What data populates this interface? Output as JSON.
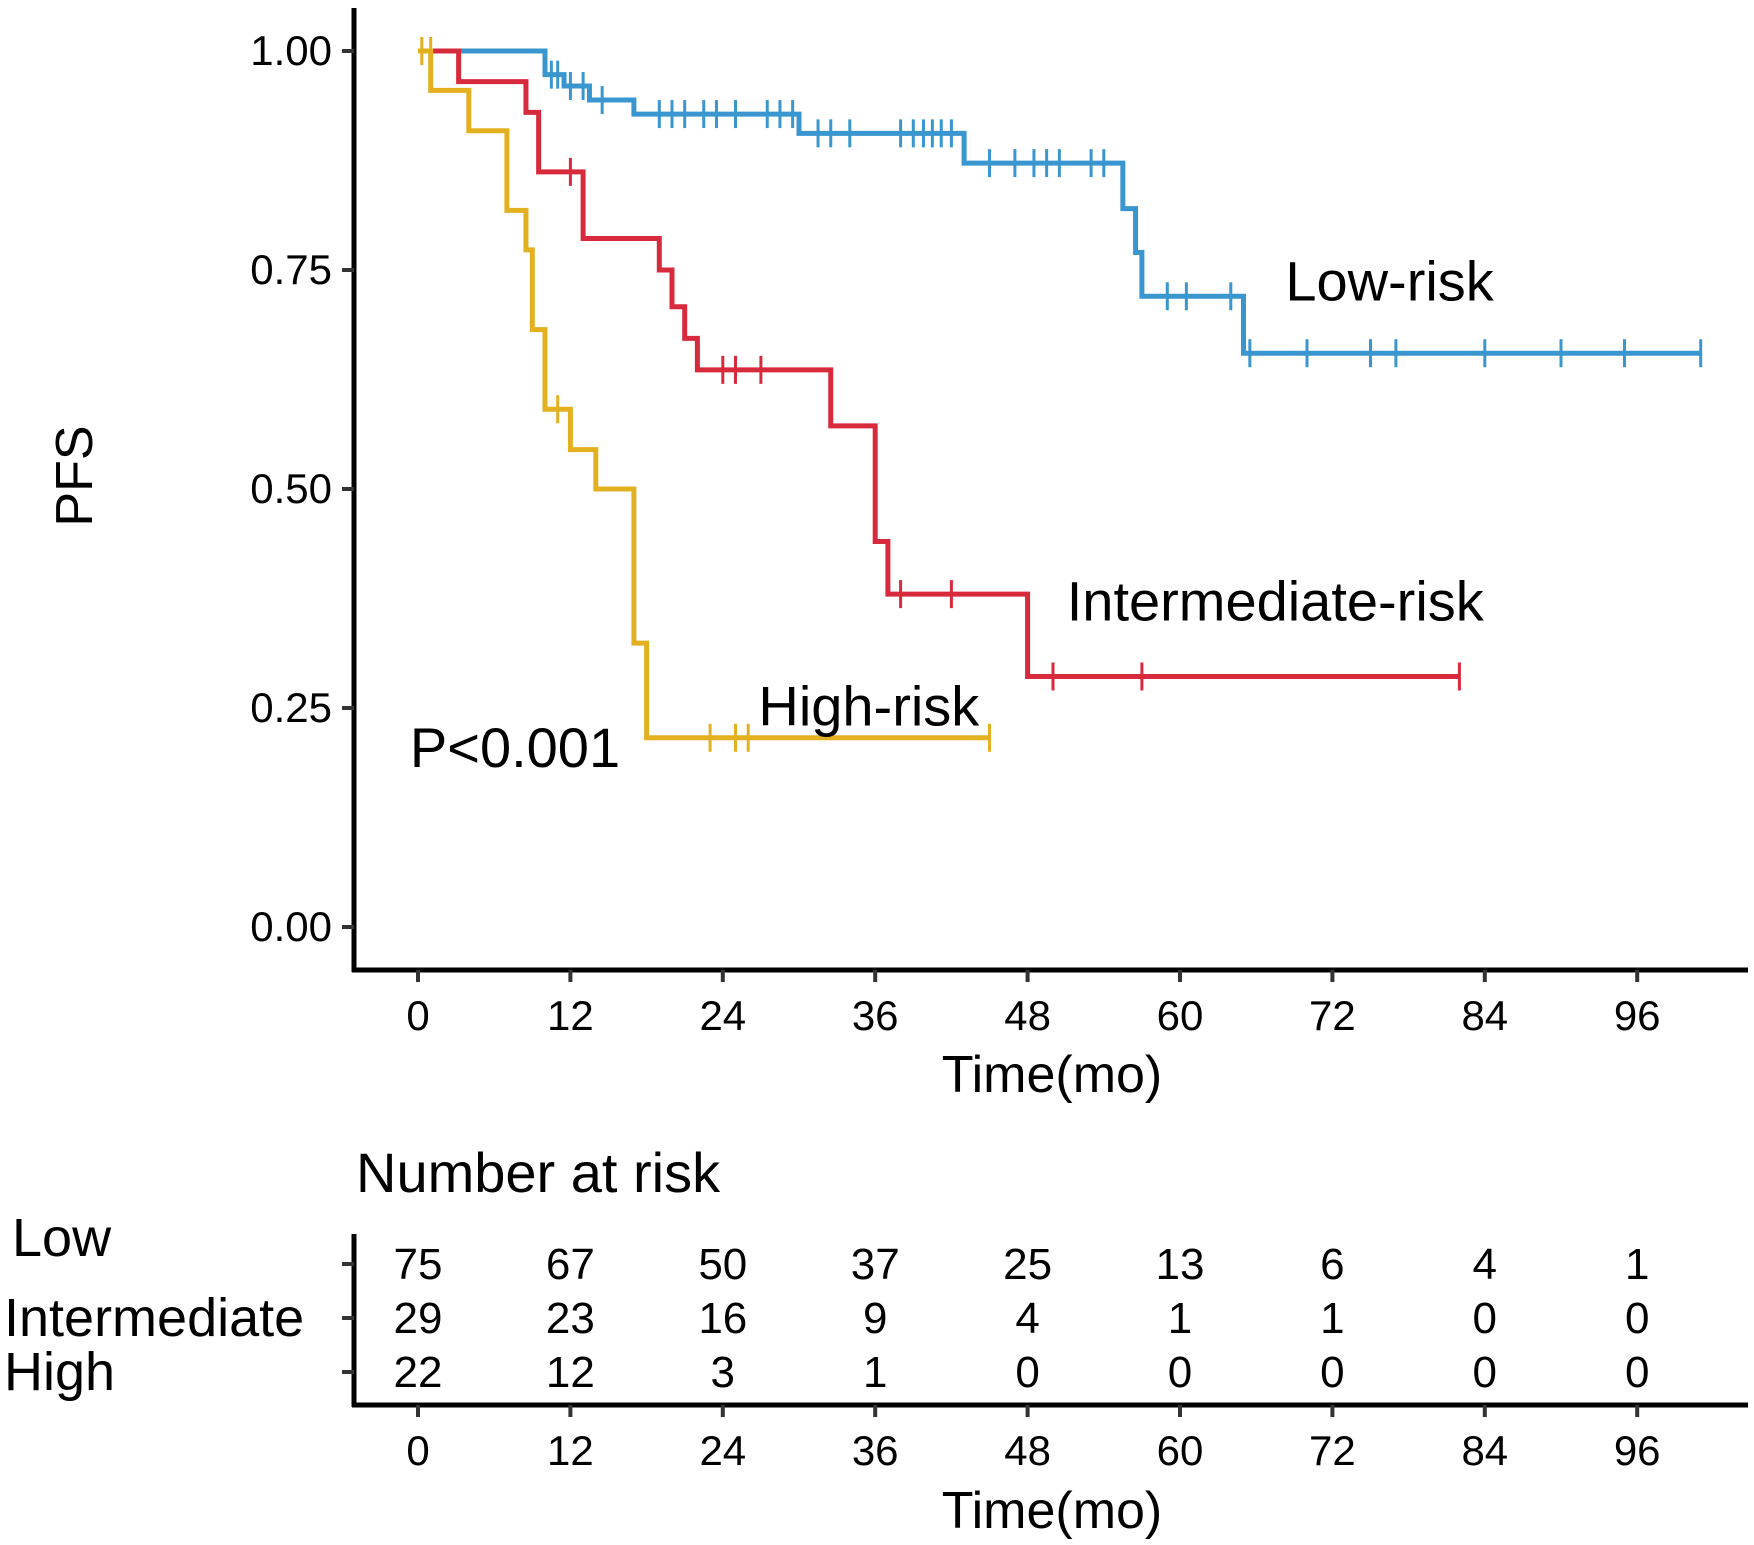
{
  "chart_data": {
    "type": "line",
    "subtype": "kaplan-meier",
    "ylabel": "PFS",
    "xlabel": "Time(mo)",
    "xlim": [
      0,
      104
    ],
    "ylim": [
      0,
      1
    ],
    "x_ticks": [
      0,
      12,
      24,
      36,
      48,
      60,
      72,
      84,
      96
    ],
    "x_tick_labels": [
      "0",
      "12",
      "24",
      "36",
      "48",
      "60",
      "72",
      "84",
      "96"
    ],
    "y_ticks": [
      0,
      0.25,
      0.5,
      0.75,
      1.0
    ],
    "y_tick_labels": [
      "0.00",
      "0.25",
      "0.50",
      "0.75",
      "1.00"
    ],
    "grid": false,
    "annotation": "P<0.001",
    "series": [
      {
        "name": "Low-risk",
        "label": "Low-risk",
        "label_pos": [
          76.5,
          0.715
        ],
        "color": "#3a96cf",
        "steps": [
          [
            0,
            1.0
          ],
          [
            10,
            0.973
          ],
          [
            11.5,
            0.96
          ],
          [
            13.5,
            0.944
          ],
          [
            17,
            0.928
          ],
          [
            30,
            0.906
          ],
          [
            43,
            0.872
          ],
          [
            55.5,
            0.82
          ],
          [
            56.5,
            0.77
          ],
          [
            57,
            0.72
          ],
          [
            65,
            0.655
          ],
          [
            101,
            0.655
          ]
        ],
        "censors": [
          [
            10.5,
            0.973
          ],
          [
            11,
            0.973
          ],
          [
            12,
            0.96
          ],
          [
            13,
            0.96
          ],
          [
            14.5,
            0.944
          ],
          [
            19,
            0.928
          ],
          [
            20,
            0.928
          ],
          [
            21,
            0.928
          ],
          [
            22.5,
            0.928
          ],
          [
            23.5,
            0.928
          ],
          [
            25,
            0.928
          ],
          [
            27.5,
            0.928
          ],
          [
            28.5,
            0.928
          ],
          [
            29.5,
            0.928
          ],
          [
            31.5,
            0.906
          ],
          [
            32.5,
            0.906
          ],
          [
            34,
            0.906
          ],
          [
            38,
            0.906
          ],
          [
            39,
            0.906
          ],
          [
            39.8,
            0.906
          ],
          [
            40.5,
            0.906
          ],
          [
            41.2,
            0.906
          ],
          [
            42,
            0.906
          ],
          [
            45,
            0.872
          ],
          [
            47,
            0.872
          ],
          [
            48.5,
            0.872
          ],
          [
            49.5,
            0.872
          ],
          [
            50.5,
            0.872
          ],
          [
            53,
            0.872
          ],
          [
            54,
            0.872
          ],
          [
            59,
            0.72
          ],
          [
            60.5,
            0.72
          ],
          [
            64,
            0.72
          ],
          [
            65.5,
            0.655
          ],
          [
            70,
            0.655
          ],
          [
            75,
            0.655
          ],
          [
            77,
            0.655
          ],
          [
            84,
            0.655
          ],
          [
            90,
            0.655
          ],
          [
            95,
            0.655
          ],
          [
            101,
            0.655
          ]
        ]
      },
      {
        "name": "Intermediate-risk",
        "label": "Intermediate-risk",
        "label_pos": [
          67.5,
          0.35
        ],
        "color": "#d72a3c",
        "steps": [
          [
            0,
            1.0
          ],
          [
            3.2,
            0.965
          ],
          [
            8.5,
            0.93
          ],
          [
            9.5,
            0.862
          ],
          [
            13,
            0.786
          ],
          [
            19,
            0.75
          ],
          [
            20,
            0.708
          ],
          [
            21,
            0.672
          ],
          [
            22,
            0.636
          ],
          [
            32.5,
            0.572
          ],
          [
            36,
            0.44
          ],
          [
            37,
            0.38
          ],
          [
            48,
            0.286
          ],
          [
            82,
            0.286
          ]
        ],
        "censors": [
          [
            12,
            0.862
          ],
          [
            24,
            0.636
          ],
          [
            25,
            0.636
          ],
          [
            27,
            0.636
          ],
          [
            38,
            0.38
          ],
          [
            42,
            0.38
          ],
          [
            50,
            0.286
          ],
          [
            57,
            0.286
          ],
          [
            82,
            0.286
          ]
        ]
      },
      {
        "name": "High-risk",
        "label": "High-risk",
        "label_pos": [
          35.5,
          0.23
        ],
        "color": "#e3b020",
        "steps": [
          [
            0,
            1.0
          ],
          [
            1,
            0.955
          ],
          [
            4,
            0.909
          ],
          [
            7,
            0.818
          ],
          [
            8.5,
            0.773
          ],
          [
            9,
            0.682
          ],
          [
            10,
            0.591
          ],
          [
            12,
            0.545
          ],
          [
            14,
            0.5
          ],
          [
            17,
            0.324
          ],
          [
            18,
            0.216
          ],
          [
            45,
            0.216
          ]
        ],
        "censors": [
          [
            0.3,
            1.0
          ],
          [
            1.0,
            1.0
          ],
          [
            11,
            0.591
          ],
          [
            23,
            0.216
          ],
          [
            25,
            0.216
          ],
          [
            26,
            0.216
          ],
          [
            45,
            0.216
          ]
        ]
      }
    ],
    "risk_table": {
      "title": "Number at risk",
      "xlabel": "Time(mo)",
      "times": [
        0,
        12,
        24,
        36,
        48,
        60,
        72,
        84,
        96
      ],
      "time_labels": [
        "0",
        "12",
        "24",
        "36",
        "48",
        "60",
        "72",
        "84",
        "96"
      ],
      "rows": [
        {
          "label": "Low",
          "values": [
            "75",
            "67",
            "50",
            "37",
            "25",
            "13",
            "6",
            "4",
            "1"
          ]
        },
        {
          "label": "Intermediate",
          "values": [
            "29",
            "23",
            "16",
            "9",
            "4",
            "1",
            "1",
            "0",
            "0"
          ]
        },
        {
          "label": "High",
          "values": [
            "22",
            "12",
            "3",
            "1",
            "0",
            "0",
            "0",
            "0",
            "0"
          ]
        }
      ]
    }
  }
}
